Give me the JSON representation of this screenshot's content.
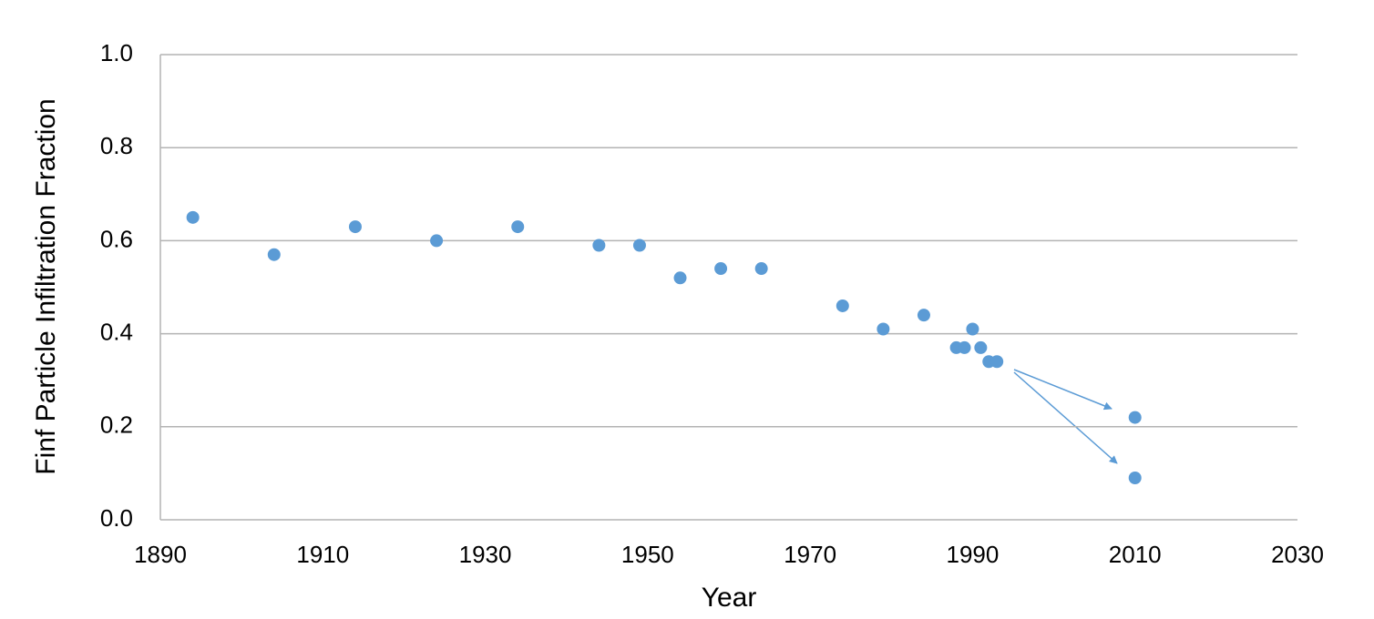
{
  "chart_data": {
    "type": "scatter",
    "x_label": "Year",
    "y_label": "Finf Particle Infiltration Fraction",
    "x": [
      1894,
      1904,
      1914,
      1924,
      1934,
      1944,
      1949,
      1954,
      1959,
      1964,
      1974,
      1979,
      1984,
      1988,
      1989,
      1990,
      1991,
      1992,
      1993,
      2010,
      2010
    ],
    "values": [
      0.65,
      0.57,
      0.63,
      0.6,
      0.63,
      0.59,
      0.59,
      0.52,
      0.54,
      0.54,
      0.46,
      0.41,
      0.44,
      0.37,
      0.37,
      0.41,
      0.37,
      0.34,
      0.34,
      0.22,
      0.09
    ],
    "color": "#5b9bd5",
    "xlim": [
      1890,
      2030
    ],
    "xticks": [
      1890,
      1910,
      1930,
      1950,
      1970,
      1990,
      2010,
      2030
    ],
    "ylim": [
      0,
      1
    ],
    "yticks": [
      {
        "value": 0,
        "label": "0.0"
      },
      0.2,
      0.4,
      0.6,
      0.8,
      {
        "value": 1,
        "label": "1.0"
      }
    ],
    "grid": true
  }
}
